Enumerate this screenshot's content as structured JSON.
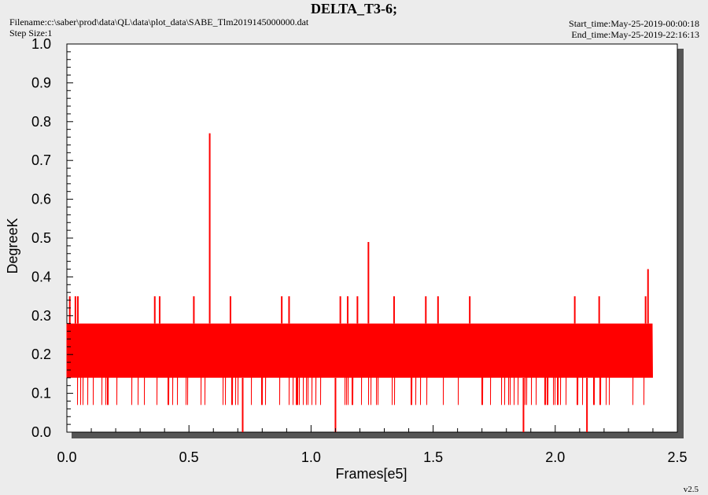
{
  "header": {
    "title": "DELTA_T3-6;",
    "filename_label": "Filename:c:\\saber\\prod\\data\\QL\\data\\plot_data\\SABE_Tlm2019145000000.dat",
    "step_size_label": "Step Size:1",
    "start_time_label": "Start_time:May-25-2019-00:00:18",
    "end_time_label": "End_time:May-25-2019-22:16:13"
  },
  "footer": {
    "version": "v2.5"
  },
  "chart_data": {
    "type": "line",
    "title": "DELTA_T3-6;",
    "xlabel": "Frames[e5]",
    "ylabel": "DegreeK",
    "xlim": [
      0,
      2.5
    ],
    "ylim": [
      0,
      1.0
    ],
    "x_ticks": [
      "0.0",
      "0.5",
      "1.0",
      "1.5",
      "2.0",
      "2.5"
    ],
    "y_ticks": [
      "0.0",
      "0.1",
      "0.2",
      "0.3",
      "0.4",
      "0.5",
      "0.6",
      "0.7",
      "0.8",
      "0.9",
      "1.0"
    ],
    "grid": false,
    "series": [
      {
        "color": "#ff0000",
        "x_range": [
          0.0,
          2.4
        ],
        "band_low": 0.14,
        "band_high": 0.28,
        "frequent_levels": [
          0.07,
          0.14,
          0.21,
          0.28,
          0.35
        ],
        "x": [
          0.0,
          0.012,
          0.035,
          0.045,
          0.36,
          0.38,
          0.52,
          0.585,
          0.67,
          0.72,
          0.88,
          0.91,
          1.1,
          1.12,
          1.15,
          1.19,
          1.235,
          1.34,
          1.47,
          1.52,
          1.65,
          1.87,
          2.08,
          2.13,
          2.18,
          2.37,
          2.38,
          2.4
        ],
        "values": [
          0.14,
          0.35,
          0.35,
          0.35,
          0.35,
          0.35,
          0.35,
          0.77,
          0.35,
          0.0,
          0.35,
          0.35,
          0.0,
          0.35,
          0.35,
          0.35,
          0.49,
          0.35,
          0.35,
          0.35,
          0.35,
          0.0,
          0.35,
          0.0,
          0.35,
          0.35,
          0.42,
          0.28
        ]
      }
    ]
  }
}
